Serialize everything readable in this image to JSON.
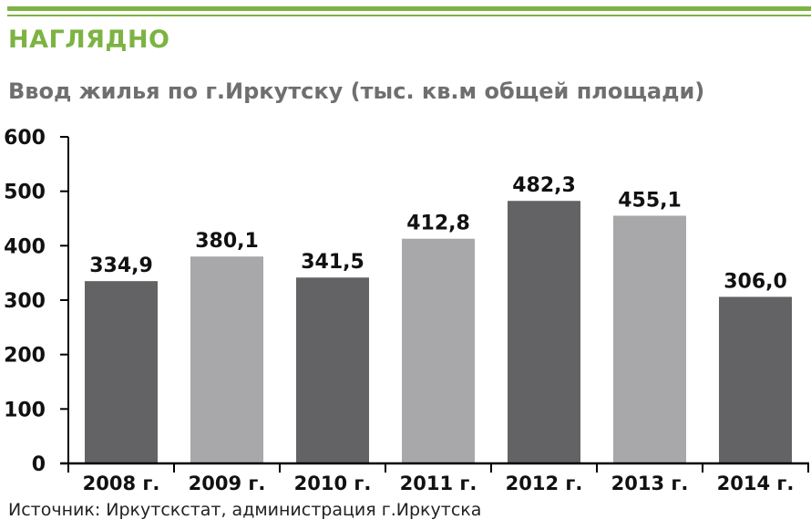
{
  "header": {
    "section_label": "НАГЛЯДНО",
    "chart_title": "Ввод жилья по г.Иркутску (тыс. кв.м общей площади)"
  },
  "chart_data": {
    "type": "bar",
    "title": "Ввод жилья по г.Иркутску (тыс. кв.м общей площади)",
    "categories": [
      "2008 г.",
      "2009 г.",
      "2010 г.",
      "2011 г.",
      "2012 г.",
      "2013 г.",
      "2014 г."
    ],
    "values": [
      334.9,
      380.1,
      341.5,
      412.8,
      482.3,
      455.1,
      306.0
    ],
    "value_labels": [
      "334,9",
      "380,1",
      "341,5",
      "412,8",
      "482,3",
      "455,1",
      "306,0"
    ],
    "bar_colors": [
      "#636365",
      "#a8a8aa",
      "#636365",
      "#a8a8aa",
      "#636365",
      "#a8a8aa",
      "#636365"
    ],
    "yticks": [
      0,
      100,
      200,
      300,
      400,
      500,
      600
    ],
    "ylim": [
      0,
      600
    ],
    "xlabel": "",
    "ylabel": "",
    "grid": false,
    "legend": "none"
  },
  "source": "Источник: Иркутскстат, администрация г.Иркутска",
  "colors": {
    "accent": "#7cb342",
    "title": "#6f6f6f",
    "bar_dark": "#636365",
    "bar_light": "#a8a8aa",
    "axis": "#000000"
  }
}
